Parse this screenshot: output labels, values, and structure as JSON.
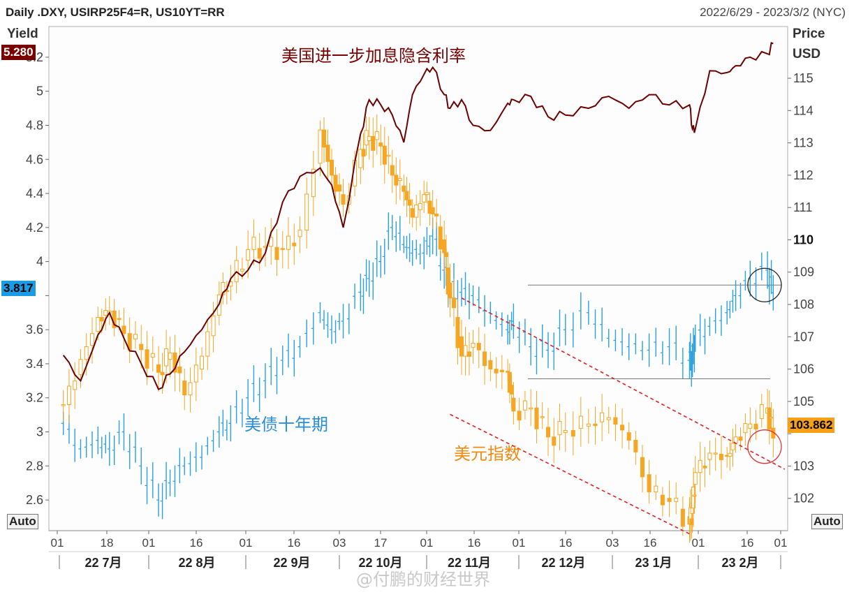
{
  "header": {
    "title": "Daily .DXY, USIRP25F4=R, US10YT=RR",
    "range": "2022/6/29 - 2023/3/2 (NYC)"
  },
  "left_axis": {
    "title": "Yield",
    "auto_label": "Auto"
  },
  "right_axis": {
    "title_line1": "Price",
    "title_line2": "USD",
    "auto_label": "Auto"
  },
  "value_boxes": {
    "rate": {
      "text": "5.280",
      "color": "#7a0000"
    },
    "yield": {
      "text": "3.817",
      "color": "#1a9be6"
    },
    "dxy": {
      "text": "103.862",
      "color": "#f5a016"
    }
  },
  "annotations": {
    "rate": "美国进一步加息隐含利率",
    "yield": "美债十年期",
    "dxy": "美元指数"
  },
  "watermark": "@付鹏的财经世界",
  "chart_data": {
    "type": "line",
    "colors": {
      "rate": "#6b0000",
      "yield": "#2aa0e0",
      "dxy": "#f5a623",
      "channel": "#e02020",
      "level": "#777777",
      "circle_blue": "#222222",
      "circle_orange": "#e03030"
    },
    "left_axis": {
      "ylim": [
        2.42,
        5.38
      ],
      "ticks": [
        2.6,
        2.8,
        3,
        3.2,
        3.4,
        3.6,
        3.8,
        4,
        4.2,
        4.4,
        4.6,
        4.8,
        5,
        5.2
      ],
      "tick_labels": [
        "2.6",
        "2.8",
        "3",
        "3.2",
        "3.4",
        "3.6",
        "",
        "4",
        "4.2",
        "4.4",
        "4.6",
        "4.8",
        "5",
        "5.2"
      ]
    },
    "right_axis": {
      "ylim": [
        101.0,
        116.6
      ],
      "ticks": [
        102,
        103,
        104,
        105,
        106,
        107,
        108,
        109,
        110,
        111,
        112,
        113,
        114,
        115
      ],
      "tick_labels": [
        "102",
        "103",
        "",
        "105",
        "106",
        "107",
        "108",
        "109",
        "110",
        "111",
        "112",
        "113",
        "114",
        "115"
      ],
      "bold_tick": "110"
    },
    "x_axis": {
      "tick_labels": [
        "01",
        "18",
        "01",
        "16",
        "01",
        "16",
        "03",
        "17",
        "01",
        "16",
        "01",
        "16",
        "03",
        "16",
        "01",
        "16",
        "01"
      ],
      "month_labels": [
        "22 7月",
        "22 8月",
        "22 9月",
        "22 10月",
        "22 11月",
        "22 12月",
        "23 1月",
        "23 2月"
      ]
    },
    "grid": false,
    "series": [
      {
        "key": "rate",
        "axis": "left",
        "style": "line",
        "x": [
          "2022-06-29",
          "2022-07-05",
          "2022-07-11",
          "2022-07-15",
          "2022-07-20",
          "2022-07-26",
          "2022-08-01",
          "2022-08-05",
          "2022-08-10",
          "2022-08-16",
          "2022-08-22",
          "2022-08-26",
          "2022-09-01",
          "2022-09-07",
          "2022-09-13",
          "2022-09-19",
          "2022-09-26",
          "2022-09-30",
          "2022-10-04",
          "2022-10-10",
          "2022-10-13",
          "2022-10-17",
          "2022-10-21",
          "2022-10-25",
          "2022-10-28",
          "2022-11-01",
          "2022-11-04",
          "2022-11-08",
          "2022-11-10",
          "2022-11-14",
          "2022-11-18",
          "2022-11-24",
          "2022-11-30",
          "2022-12-02",
          "2022-12-08",
          "2022-12-14",
          "2022-12-20",
          "2022-12-28",
          "2023-01-04",
          "2023-01-11",
          "2023-01-18",
          "2023-01-25",
          "2023-02-01",
          "2023-02-02",
          "2023-02-03",
          "2023-02-08",
          "2023-02-14",
          "2023-02-17",
          "2023-02-22",
          "2023-02-28",
          "2023-03-02"
        ],
        "y": [
          3.45,
          3.3,
          3.57,
          3.7,
          3.55,
          3.4,
          3.25,
          3.34,
          3.47,
          3.6,
          3.75,
          3.9,
          3.95,
          4.05,
          4.35,
          4.5,
          4.55,
          4.45,
          4.2,
          4.75,
          4.95,
          4.92,
          4.86,
          4.7,
          4.98,
          5.1,
          5.14,
          4.98,
          4.9,
          4.95,
          4.8,
          4.77,
          4.93,
          4.95,
          4.97,
          4.85,
          4.86,
          4.9,
          4.97,
          4.9,
          4.98,
          4.92,
          4.92,
          4.78,
          4.78,
          5.12,
          5.11,
          5.15,
          5.2,
          5.22,
          5.28
        ]
      },
      {
        "key": "yield",
        "axis": "left",
        "style": "bars",
        "x": [
          "2022-06-29",
          "2022-07-05",
          "2022-07-11",
          "2022-07-15",
          "2022-07-20",
          "2022-07-26",
          "2022-08-01",
          "2022-08-05",
          "2022-08-10",
          "2022-08-16",
          "2022-08-22",
          "2022-08-26",
          "2022-09-01",
          "2022-09-07",
          "2022-09-13",
          "2022-09-19",
          "2022-09-26",
          "2022-09-30",
          "2022-10-04",
          "2022-10-10",
          "2022-10-13",
          "2022-10-17",
          "2022-10-21",
          "2022-10-25",
          "2022-10-28",
          "2022-11-01",
          "2022-11-04",
          "2022-11-08",
          "2022-11-10",
          "2022-11-14",
          "2022-11-18",
          "2022-11-24",
          "2022-11-30",
          "2022-12-02",
          "2022-12-08",
          "2022-12-14",
          "2022-12-20",
          "2022-12-28",
          "2023-01-04",
          "2023-01-11",
          "2023-01-18",
          "2023-01-25",
          "2023-02-01",
          "2023-02-02",
          "2023-02-03",
          "2023-02-08",
          "2023-02-14",
          "2023-02-17",
          "2023-02-22",
          "2023-02-28",
          "2023-03-02"
        ],
        "y": [
          3.05,
          2.9,
          2.95,
          2.9,
          3.0,
          2.8,
          2.6,
          2.7,
          2.8,
          2.85,
          3.0,
          3.05,
          3.2,
          3.3,
          3.42,
          3.5,
          3.7,
          3.6,
          3.65,
          3.82,
          3.9,
          4.0,
          4.2,
          4.1,
          4.05,
          4.05,
          4.15,
          3.95,
          3.85,
          3.82,
          3.8,
          3.7,
          3.6,
          3.65,
          3.5,
          3.48,
          3.6,
          3.7,
          3.55,
          3.5,
          3.48,
          3.5,
          3.42,
          3.42,
          3.55,
          3.62,
          3.7,
          3.8,
          3.9,
          3.95,
          3.817
        ]
      },
      {
        "key": "dxy",
        "axis": "right",
        "style": "candles",
        "x": [
          "2022-06-29",
          "2022-07-05",
          "2022-07-11",
          "2022-07-15",
          "2022-07-20",
          "2022-07-26",
          "2022-08-01",
          "2022-08-05",
          "2022-08-10",
          "2022-08-16",
          "2022-08-22",
          "2022-08-26",
          "2022-09-01",
          "2022-09-07",
          "2022-09-13",
          "2022-09-19",
          "2022-09-26",
          "2022-09-30",
          "2022-10-04",
          "2022-10-10",
          "2022-10-13",
          "2022-10-17",
          "2022-10-21",
          "2022-10-25",
          "2022-10-28",
          "2022-11-01",
          "2022-11-04",
          "2022-11-08",
          "2022-11-10",
          "2022-11-14",
          "2022-11-18",
          "2022-11-24",
          "2022-11-30",
          "2022-12-02",
          "2022-12-08",
          "2022-12-14",
          "2022-12-20",
          "2022-12-28",
          "2023-01-04",
          "2023-01-11",
          "2023-01-18",
          "2023-01-25",
          "2023-02-01",
          "2023-02-02",
          "2023-02-03",
          "2023-02-08",
          "2023-02-14",
          "2023-02-17",
          "2023-02-22",
          "2023-02-28",
          "2023-03-02"
        ],
        "y": [
          104.9,
          106.3,
          107.6,
          107.8,
          107.1,
          106.6,
          105.9,
          106.5,
          105.2,
          106.4,
          108.3,
          108.7,
          109.7,
          109.8,
          109.7,
          110.3,
          113.4,
          112.0,
          111.1,
          112.8,
          113.2,
          112.9,
          112.0,
          111.5,
          110.7,
          111.4,
          110.8,
          109.6,
          108.2,
          106.4,
          106.8,
          106.0,
          105.9,
          104.7,
          104.8,
          103.9,
          104.1,
          104.3,
          104.5,
          103.8,
          102.2,
          101.9,
          101.2,
          101.7,
          102.8,
          103.4,
          103.3,
          103.9,
          104.3,
          104.8,
          103.862
        ]
      }
    ],
    "channel_lines": [
      {
        "from": [
          "2022-11-14",
          108.2
        ],
        "to": [
          "2023-03-06",
          102.9
        ]
      },
      {
        "from": [
          "2022-11-10",
          104.6
        ],
        "to": [
          "2023-02-01",
          100.9
        ]
      }
    ],
    "level_lines": [
      {
        "axis": "right",
        "value": 108.6,
        "from": "2022-12-07",
        "to": "2023-03-05"
      },
      {
        "axis": "right",
        "value": 105.7,
        "from": "2022-12-07",
        "to": "2023-03-01"
      }
    ],
    "highlight_circles": [
      {
        "date": "2023-02-27",
        "axis": "right",
        "value": 108.6,
        "kind": "circle_blue"
      },
      {
        "date": "2023-02-27",
        "axis": "right",
        "value": 103.6,
        "kind": "circle_orange"
      }
    ]
  }
}
